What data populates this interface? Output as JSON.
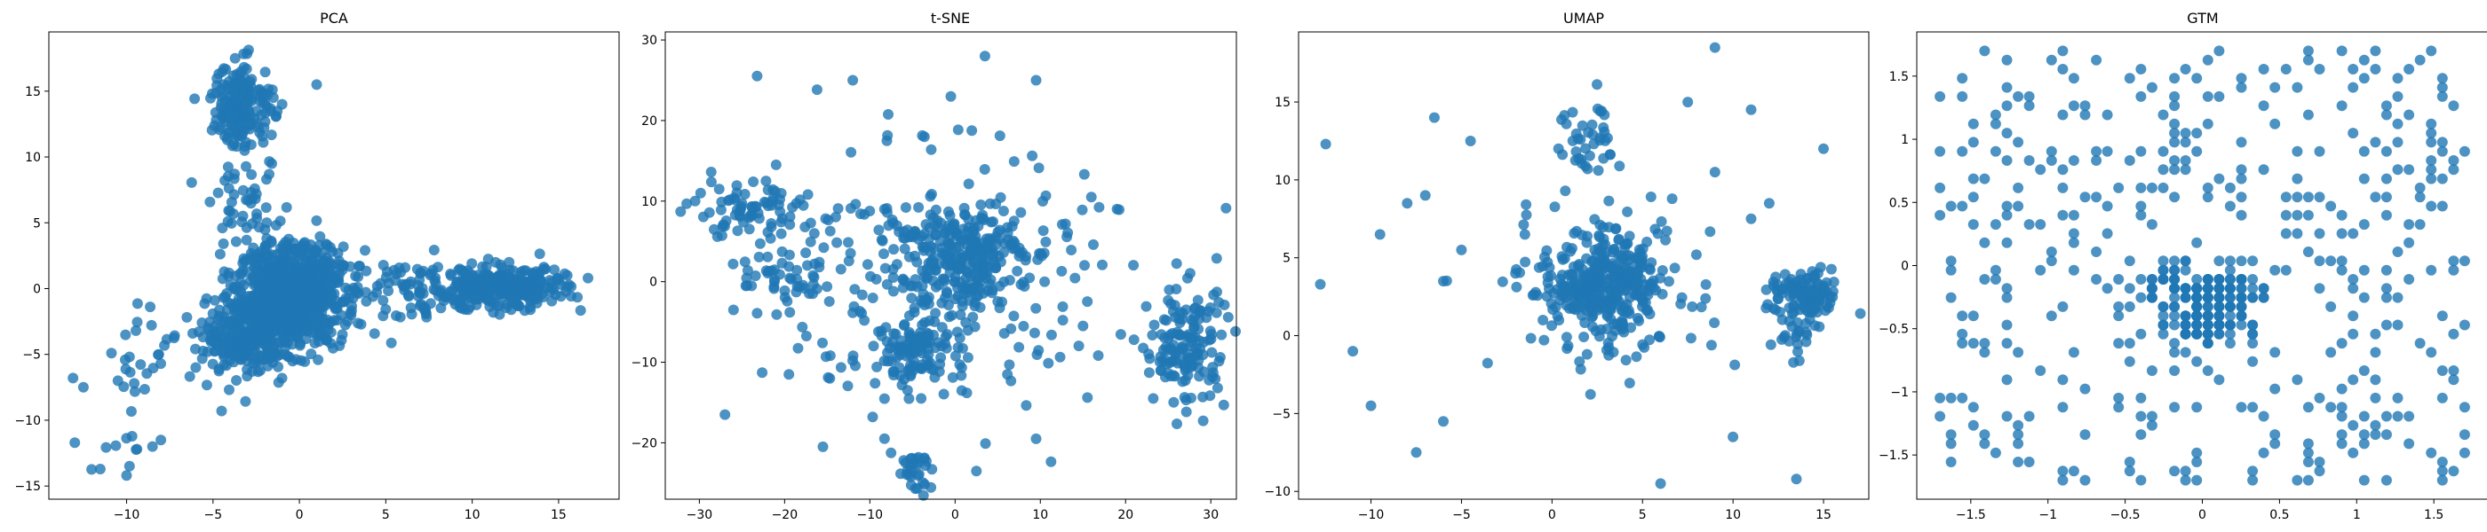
{
  "figure": {
    "titles": [
      "PCA",
      "t-SNE",
      "UMAP",
      "GTM"
    ],
    "point_color": "#1f77b4",
    "background": "#ffffff"
  },
  "chart_data": [
    {
      "type": "scatter",
      "title": "PCA",
      "xlabel": "",
      "ylabel": "",
      "xlim": [
        -14.5,
        18.5
      ],
      "ylim": [
        -16,
        19.5
      ],
      "xticks": [
        -10,
        -5,
        0,
        5,
        10,
        15
      ],
      "yticks": [
        -15,
        -10,
        -5,
        0,
        5,
        10,
        15
      ],
      "grid": false,
      "clusters": [
        {
          "center": [
            -0.5,
            -0.5
          ],
          "spread": [
            1.5,
            1.9
          ],
          "n": 900
        },
        {
          "center": [
            -3.2,
            -3.5
          ],
          "spread": [
            1.1,
            1.5
          ],
          "n": 250
        },
        {
          "center": [
            11.5,
            0.0
          ],
          "spread": [
            2.0,
            0.8
          ],
          "n": 320
        },
        {
          "center": [
            -3.3,
            14.0
          ],
          "spread": [
            0.9,
            1.6
          ],
          "n": 170
        },
        {
          "center": [
            -3.2,
            6.5
          ],
          "spread": [
            1.0,
            1.3
          ],
          "n": 40
        },
        {
          "center": [
            6.0,
            -0.3
          ],
          "spread": [
            2.0,
            1.3
          ],
          "n": 70
        },
        {
          "center": [
            -8.5,
            -5.0
          ],
          "spread": [
            1.8,
            1.5
          ],
          "n": 30
        },
        {
          "center": [
            -10.5,
            -11.5
          ],
          "spread": [
            1.2,
            1.6
          ],
          "n": 10
        }
      ],
      "points": [
        [
          -13.0,
          -11.7
        ],
        [
          -12.5,
          -7.5
        ],
        [
          -10.0,
          -14.2
        ],
        [
          -9.4,
          -12.2
        ],
        [
          -8.5,
          -12.0
        ],
        [
          -13.1,
          -6.8
        ],
        [
          -10.5,
          -7.0
        ],
        [
          1.0,
          15.5
        ],
        [
          -1.0,
          14.0
        ],
        [
          -1.6,
          9.5
        ],
        [
          16.7,
          0.8
        ],
        [
          15.5,
          1.0
        ],
        [
          -6.0,
          -6.0
        ],
        [
          -4.5,
          -9.3
        ],
        [
          -2.0,
          14.8
        ]
      ]
    },
    {
      "type": "scatter",
      "title": "t-SNE",
      "xlabel": "",
      "ylabel": "",
      "xlim": [
        -34,
        33
      ],
      "ylim": [
        -27,
        31
      ],
      "xticks": [
        -30,
        -20,
        -10,
        0,
        10,
        20,
        30
      ],
      "yticks": [
        -20,
        -10,
        0,
        10,
        20,
        30
      ],
      "grid": false,
      "clusters": [
        {
          "center": [
            1.0,
            3.5
          ],
          "spread": [
            3.5,
            3.0
          ],
          "n": 220
        },
        {
          "center": [
            -2.0,
            0.0
          ],
          "spread": [
            9.0,
            8.0
          ],
          "n": 260
        },
        {
          "center": [
            27.0,
            -8.0
          ],
          "spread": [
            2.5,
            4.0
          ],
          "n": 150
        },
        {
          "center": [
            -5.0,
            -9.0
          ],
          "spread": [
            2.5,
            2.0
          ],
          "n": 90
        },
        {
          "center": [
            -24.0,
            9.0
          ],
          "spread": [
            4.5,
            1.8
          ],
          "n": 80
        },
        {
          "center": [
            -5.0,
            -24.0
          ],
          "spread": [
            1.2,
            1.2
          ],
          "n": 30
        },
        {
          "center": [
            -20.0,
            0.5
          ],
          "spread": [
            2.5,
            1.5
          ],
          "n": 40
        }
      ],
      "points": [
        [
          -30.5,
          10.0
        ],
        [
          -27.0,
          -16.5
        ],
        [
          -26.0,
          -3.5
        ],
        [
          -12.0,
          25.0
        ],
        [
          3.5,
          28.0
        ],
        [
          9.5,
          25.0
        ],
        [
          9.5,
          -19.5
        ],
        [
          -0.5,
          23.0
        ],
        [
          -15.5,
          -20.5
        ],
        [
          19.0,
          9.0
        ],
        [
          -8.0,
          17.5
        ],
        [
          2.5,
          -23.5
        ],
        [
          -19.5,
          -11.5
        ],
        [
          15.0,
          -5.5
        ],
        [
          -21.0,
          14.5
        ]
      ]
    },
    {
      "type": "scatter",
      "title": "UMAP",
      "xlabel": "",
      "ylabel": "",
      "xlim": [
        -14,
        17.5
      ],
      "ylim": [
        -10.5,
        19.5
      ],
      "xticks": [
        -10,
        -5,
        0,
        5,
        10,
        15
      ],
      "yticks": [
        -10,
        -5,
        0,
        5,
        10,
        15
      ],
      "grid": false,
      "clusters": [
        {
          "center": [
            3.0,
            3.5
          ],
          "spread": [
            1.4,
            1.4
          ],
          "n": 260
        },
        {
          "center": [
            3.0,
            3.0
          ],
          "spread": [
            3.0,
            2.8
          ],
          "n": 140
        },
        {
          "center": [
            14.0,
            2.5
          ],
          "spread": [
            1.0,
            0.8
          ],
          "n": 110
        },
        {
          "center": [
            2.0,
            12.5
          ],
          "spread": [
            0.8,
            1.5
          ],
          "n": 40
        },
        {
          "center": [
            13.5,
            -0.5
          ],
          "spread": [
            0.6,
            1.0
          ],
          "n": 20
        }
      ],
      "points": [
        [
          -12.5,
          12.3
        ],
        [
          -12.8,
          3.3
        ],
        [
          -9.5,
          6.5
        ],
        [
          -8.0,
          8.5
        ],
        [
          -10.0,
          -4.5
        ],
        [
          -11.0,
          -1.0
        ],
        [
          -6.0,
          3.5
        ],
        [
          -7.5,
          -7.5
        ],
        [
          -6.0,
          -5.5
        ],
        [
          -7.0,
          9.0
        ],
        [
          -6.5,
          14.0
        ],
        [
          -4.5,
          12.5
        ],
        [
          -5.0,
          5.5
        ],
        [
          9.0,
          18.5
        ],
        [
          11.0,
          14.5
        ],
        [
          7.5,
          15.0
        ],
        [
          13.5,
          -9.2
        ],
        [
          6.0,
          -9.5
        ],
        [
          10.0,
          -6.5
        ],
        [
          9.0,
          10.5
        ],
        [
          11.0,
          7.5
        ],
        [
          15.0,
          12.0
        ],
        [
          12.0,
          8.5
        ],
        [
          -1.5,
          6.5
        ],
        [
          -0.5,
          1.0
        ]
      ]
    },
    {
      "type": "scatter",
      "title": "GTM",
      "xlabel": "",
      "ylabel": "",
      "xlim": [
        -1.85,
        1.85
      ],
      "ylim": [
        -1.85,
        1.85
      ],
      "xticks": [
        -1.5,
        -1.0,
        -0.5,
        0.0,
        0.5,
        1.0,
        1.5
      ],
      "yticks": [
        -1.5,
        -1.0,
        -0.5,
        0.0,
        0.5,
        1.0,
        1.5
      ],
      "grid": false,
      "lattice": {
        "min": -1.7,
        "max": 1.7,
        "steps": 48
      },
      "clusters": [
        {
          "center": [
            0.0,
            -0.4
          ],
          "spread": [
            0.12,
            0.15
          ],
          "n": 120
        },
        {
          "center": [
            -0.2,
            -0.15
          ],
          "spread": [
            0.1,
            0.1
          ],
          "n": 40
        },
        {
          "center": [
            0.2,
            -0.2
          ],
          "spread": [
            0.1,
            0.1
          ],
          "n": 40
        }
      ],
      "points": []
    }
  ]
}
